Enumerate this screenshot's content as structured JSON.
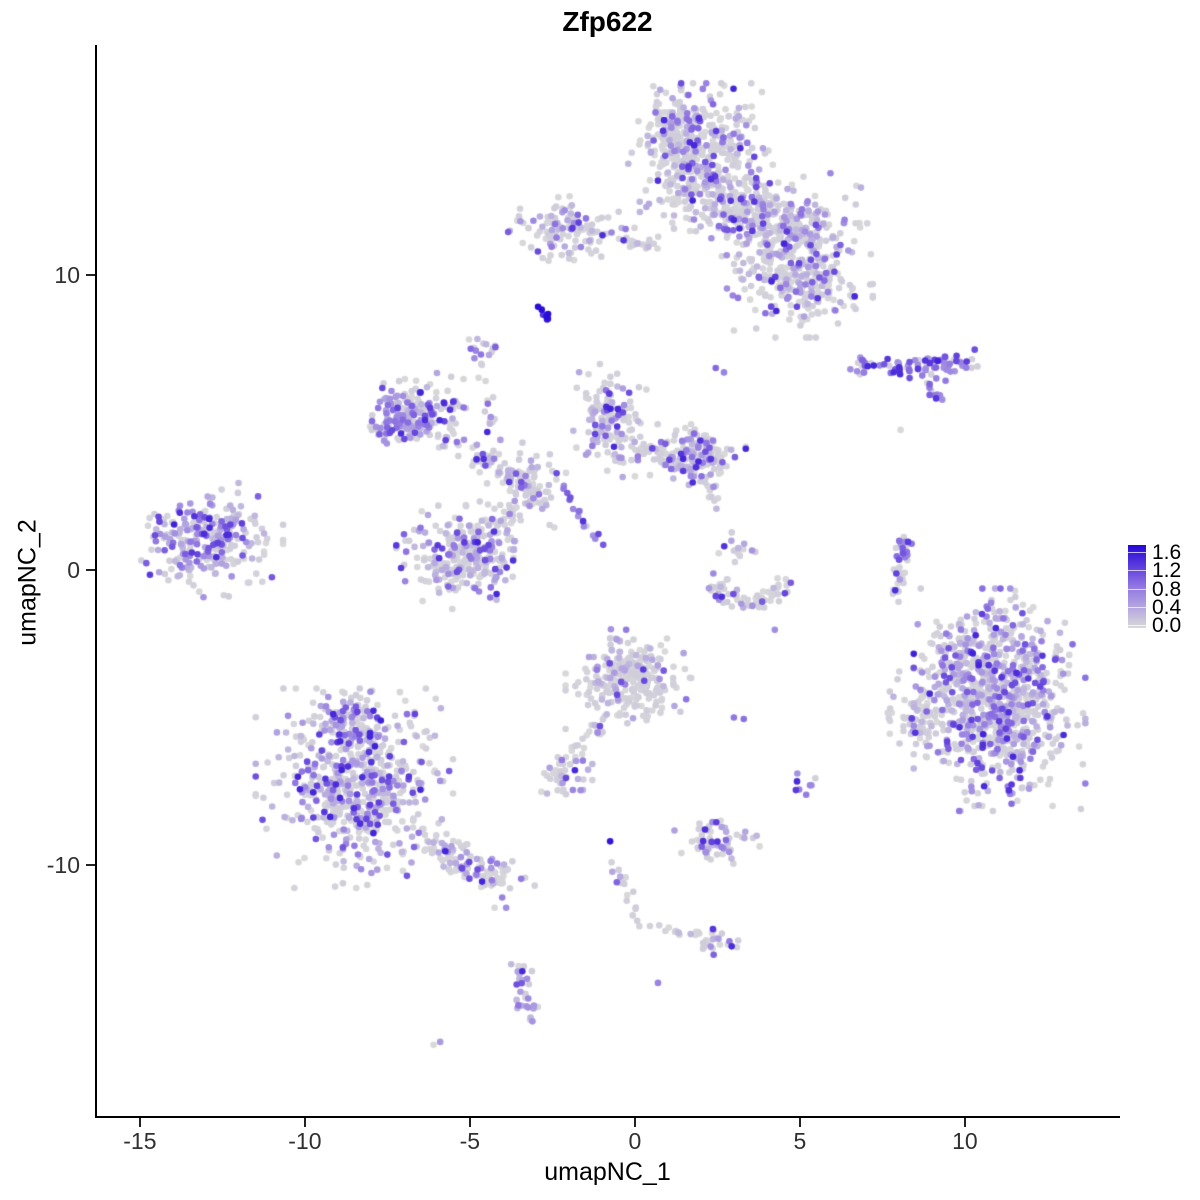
{
  "title": "Zfp622",
  "chart_data": {
    "type": "scatter",
    "title": "Zfp622",
    "xlabel": "umapNC_1",
    "ylabel": "umapNC_2",
    "xlim": [
      -16.36,
      14.7
    ],
    "ylim": [
      -18.58,
      17.8
    ],
    "grid": false,
    "x_ticks": [
      -15,
      -10,
      -5,
      0,
      5,
      10
    ],
    "y_ticks": [
      10,
      0,
      -10
    ],
    "point_radius_px": 3.3,
    "palette_stops": [
      [
        0.0,
        "#D9D9D9"
      ],
      [
        0.4,
        "#B4A6E0"
      ],
      [
        0.8,
        "#9177E2"
      ],
      [
        1.2,
        "#5C3BDC"
      ],
      [
        1.6,
        "#2408D8"
      ]
    ],
    "legend": {
      "position": "right",
      "min": 0.0,
      "max": 1.6,
      "tick_labels": [
        "1.6",
        "1.2",
        "0.8",
        "0.4",
        "0.0"
      ]
    },
    "clusters": [
      {
        "name": "top-main-blob",
        "kind": "blob",
        "cx": 1.97,
        "cy": 13.9,
        "sx": 0.85,
        "sy": 1.0,
        "n": 430,
        "frac": 0.33,
        "bias": "low"
      },
      {
        "name": "top-main-peak",
        "kind": "blob",
        "cx": 1.1,
        "cy": 15.1,
        "sx": 0.45,
        "sy": 0.55,
        "n": 90,
        "frac": 0.35,
        "bias": "low"
      },
      {
        "name": "top-bridge",
        "kind": "blob",
        "cx": 3.3,
        "cy": 12.2,
        "sx": 0.7,
        "sy": 0.6,
        "n": 120,
        "frac": 0.3,
        "bias": "low"
      },
      {
        "name": "top-right-ext",
        "kind": "blob",
        "cx": 4.7,
        "cy": 11.5,
        "sx": 0.9,
        "sy": 0.75,
        "n": 280,
        "frac": 0.35,
        "bias": "low"
      },
      {
        "name": "top-right-lobe",
        "kind": "blob",
        "cx": 5.0,
        "cy": 9.7,
        "sx": 0.85,
        "sy": 0.7,
        "n": 230,
        "frac": 0.3,
        "bias": "low"
      },
      {
        "name": "upper-left-cluster",
        "kind": "blob",
        "cx": -2.1,
        "cy": 11.5,
        "sx": 0.7,
        "sy": 0.45,
        "n": 120,
        "frac": 0.3,
        "bias": "low"
      },
      {
        "name": "upper-left-arm",
        "kind": "line",
        "x1": -0.5,
        "y1": 11.15,
        "x2": 0.6,
        "y2": 11.0,
        "w": 0.12,
        "n": 18,
        "frac": 0.1,
        "bias": "low"
      },
      {
        "name": "blue-streak",
        "kind": "line",
        "x1": -2.95,
        "y1": 8.95,
        "x2": -2.6,
        "y2": 8.45,
        "w": 0.07,
        "n": 9,
        "frac": 1.0,
        "bias": "high"
      },
      {
        "name": "small-cluster-f",
        "kind": "blob",
        "cx": -4.5,
        "cy": 7.45,
        "sx": 0.3,
        "sy": 0.25,
        "n": 14,
        "frac": 0.4,
        "bias": "low"
      },
      {
        "name": "mid-left-wing",
        "kind": "blob",
        "cx": -6.65,
        "cy": 5.25,
        "sx": 0.7,
        "sy": 0.55,
        "n": 170,
        "frac": 0.45,
        "bias": "low"
      },
      {
        "name": "wing-left-edge",
        "kind": "blob",
        "cx": -7.3,
        "cy": 5.0,
        "sx": 0.35,
        "sy": 0.45,
        "n": 40,
        "frac": 0.7,
        "bias": "mid"
      },
      {
        "name": "x-arm",
        "kind": "line",
        "x1": -5.4,
        "y1": 4.4,
        "x2": -2.9,
        "y2": 2.4,
        "w": 0.25,
        "n": 85,
        "frac": 0.35,
        "bias": "low"
      },
      {
        "name": "diag-purple-streak",
        "kind": "line",
        "x1": -2.3,
        "y1": 3.05,
        "x2": -1.05,
        "y2": 0.85,
        "w": 0.08,
        "n": 16,
        "frac": 0.9,
        "bias": "mid"
      },
      {
        "name": "center-left-round-blob",
        "kind": "blob",
        "cx": -5.15,
        "cy": 0.5,
        "sx": 0.8,
        "sy": 0.7,
        "n": 270,
        "frac": 0.4,
        "bias": "low"
      },
      {
        "name": "junction-sparse",
        "kind": "blob",
        "cx": -3.2,
        "cy": 3.0,
        "sx": 0.5,
        "sy": 0.6,
        "n": 55,
        "frac": 0.3,
        "bias": "low"
      },
      {
        "name": "junction-connector",
        "kind": "line",
        "x1": -3.6,
        "y1": 2.2,
        "x2": -4.6,
        "y2": 1.2,
        "w": 0.2,
        "n": 30,
        "frac": 0.3,
        "bias": "low"
      },
      {
        "name": "chain-up",
        "kind": "line",
        "x1": -4.4,
        "y1": 4.4,
        "x2": -4.55,
        "y2": 7.0,
        "w": 0.12,
        "n": 14,
        "frac": 0.15,
        "bias": "low"
      },
      {
        "name": "center-top-cluster",
        "kind": "blob",
        "cx": -0.75,
        "cy": 5.1,
        "sx": 0.45,
        "sy": 0.75,
        "n": 140,
        "frac": 0.4,
        "bias": "low"
      },
      {
        "name": "center-bridge",
        "kind": "line",
        "x1": -0.3,
        "y1": 4.2,
        "x2": 1.0,
        "y2": 3.9,
        "w": 0.15,
        "n": 25,
        "frac": 0.3,
        "bias": "low"
      },
      {
        "name": "center-right-cluster",
        "kind": "blob",
        "cx": 1.8,
        "cy": 3.9,
        "sx": 0.6,
        "sy": 0.4,
        "n": 160,
        "frac": 0.42,
        "bias": "low"
      },
      {
        "name": "center-right-tail",
        "kind": "line",
        "x1": 2.1,
        "y1": 3.2,
        "x2": 2.4,
        "y2": 2.3,
        "w": 0.12,
        "n": 12,
        "frac": 0.1,
        "bias": "low"
      },
      {
        "name": "pair-dots-n",
        "kind": "dots",
        "pts": [
          [
            2.45,
            6.85,
            0.9
          ],
          [
            2.7,
            6.7,
            0.7
          ]
        ]
      },
      {
        "name": "right-band",
        "kind": "line",
        "x1": 6.7,
        "y1": 6.9,
        "x2": 10.3,
        "y2": 7.0,
        "w": 0.22,
        "n": 85,
        "frac": 0.7,
        "bias": "mid"
      },
      {
        "name": "right-band-diag",
        "kind": "line",
        "x1": 8.8,
        "y1": 6.3,
        "x2": 9.4,
        "y2": 5.7,
        "w": 0.08,
        "n": 10,
        "frac": 0.8,
        "bias": "mid"
      },
      {
        "name": "right-band-dot",
        "kind": "dots",
        "pts": [
          [
            8.05,
            4.75,
            0.0
          ]
        ]
      },
      {
        "name": "right-crescent-top",
        "kind": "line",
        "x1": 8.2,
        "y1": 1.15,
        "x2": 8.05,
        "y2": 0.1,
        "w": 0.1,
        "n": 22,
        "frac": 0.75,
        "bias": "mid"
      },
      {
        "name": "right-crescent-bottom",
        "kind": "line",
        "x1": 8.05,
        "y1": 0.1,
        "x2": 7.95,
        "y2": -1.05,
        "w": 0.1,
        "n": 22,
        "frac": 0.15,
        "bias": "low"
      },
      {
        "name": "big-right-blob",
        "kind": "blob",
        "cx": 11.05,
        "cy": -4.4,
        "sx": 1.0,
        "sy": 1.45,
        "n": 850,
        "frac": 0.45,
        "bias": "low"
      },
      {
        "name": "big-right-left-arm",
        "kind": "blob",
        "cx": 8.6,
        "cy": -5.0,
        "sx": 0.45,
        "sy": 0.6,
        "n": 70,
        "frac": 0.25,
        "bias": "low"
      },
      {
        "name": "big-right-top-sparse",
        "kind": "blob",
        "cx": 9.6,
        "cy": -2.9,
        "sx": 0.5,
        "sy": 0.5,
        "n": 60,
        "frac": 0.3,
        "bias": "low"
      },
      {
        "name": "small-purple-blob-r",
        "kind": "blob",
        "cx": 5.2,
        "cy": -7.3,
        "sx": 0.18,
        "sy": 0.2,
        "n": 8,
        "frac": 0.85,
        "bias": "mid"
      },
      {
        "name": "far-left-cluster",
        "kind": "blob",
        "cx": -13.0,
        "cy": 1.0,
        "sx": 0.9,
        "sy": 0.75,
        "n": 270,
        "frac": 0.55,
        "bias": "low"
      },
      {
        "name": "bottom-left-cluster",
        "kind": "blob",
        "cx": -8.5,
        "cy": -7.4,
        "sx": 1.15,
        "sy": 1.3,
        "n": 600,
        "frac": 0.4,
        "bias": "low"
      },
      {
        "name": "bottom-left-dense-top",
        "kind": "blob",
        "cx": -8.7,
        "cy": -5.3,
        "sx": 0.55,
        "sy": 0.45,
        "n": 90,
        "frac": 0.45,
        "bias": "low"
      },
      {
        "name": "bottom-left-tail",
        "kind": "line",
        "x1": -6.3,
        "y1": -9.1,
        "x2": -3.8,
        "y2": -10.7,
        "w": 0.3,
        "n": 110,
        "frac": 0.35,
        "bias": "low"
      },
      {
        "name": "tail-end-dots",
        "kind": "dots",
        "pts": [
          [
            -4.25,
            -11.45,
            0.0
          ],
          [
            -3.9,
            -11.45,
            0.6
          ]
        ]
      },
      {
        "name": "bottom-streak",
        "kind": "line",
        "x1": -3.45,
        "y1": -13.4,
        "x2": -3.2,
        "y2": -15.3,
        "w": 0.15,
        "n": 32,
        "frac": 0.6,
        "bias": "low"
      },
      {
        "name": "bottom-pair-dots",
        "kind": "dots",
        "pts": [
          [
            -6.1,
            -16.1,
            0.0
          ],
          [
            -5.9,
            -16.0,
            0.5
          ]
        ]
      },
      {
        "name": "center-bottom-cluster",
        "kind": "blob",
        "cx": -0.15,
        "cy": -3.7,
        "sx": 0.75,
        "sy": 0.65,
        "n": 260,
        "frac": 0.18,
        "bias": "low"
      },
      {
        "name": "center-bottom-funnel",
        "kind": "line",
        "x1": -0.9,
        "y1": -4.9,
        "x2": -2.1,
        "y2": -6.7,
        "w": 0.15,
        "n": 28,
        "frac": 0.25,
        "bias": "low"
      },
      {
        "name": "funnel-end-blob",
        "kind": "blob",
        "cx": -2.2,
        "cy": -7.1,
        "sx": 0.35,
        "sy": 0.3,
        "n": 38,
        "frac": 0.35,
        "bias": "low"
      },
      {
        "name": "lone-blue-dot",
        "kind": "dots",
        "pts": [
          [
            -0.75,
            -9.2,
            1.5
          ]
        ]
      },
      {
        "name": "lower-chain",
        "kind": "line",
        "x1": -0.65,
        "y1": -9.8,
        "x2": -0.1,
        "y2": -11.7,
        "w": 0.12,
        "n": 16,
        "frac": 0.15,
        "bias": "low"
      },
      {
        "name": "lower-arc",
        "kind": "line",
        "x1": 0.0,
        "y1": -11.8,
        "x2": 1.6,
        "y2": -12.4,
        "w": 0.1,
        "n": 12,
        "frac": 0.1,
        "bias": "low"
      },
      {
        "name": "lower-arc-blob",
        "kind": "blob",
        "cx": 2.35,
        "cy": -12.6,
        "sx": 0.3,
        "sy": 0.25,
        "n": 26,
        "frac": 0.45,
        "bias": "low"
      },
      {
        "name": "purple-pair",
        "kind": "dots",
        "pts": [
          [
            3.0,
            -5.0,
            0.8
          ],
          [
            3.3,
            -5.05,
            0.85
          ]
        ]
      },
      {
        "name": "lone-purple-dot",
        "kind": "dots",
        "pts": [
          [
            0.7,
            -14.0,
            0.7
          ]
        ]
      },
      {
        "name": "small-bottom-cluster",
        "kind": "blob",
        "cx": 2.5,
        "cy": -9.3,
        "sx": 0.5,
        "sy": 0.35,
        "n": 60,
        "frac": 0.45,
        "bias": "low"
      },
      {
        "name": "small-bottom-dots",
        "kind": "dots",
        "pts": [
          [
            2.35,
            -8.55,
            0.6
          ],
          [
            2.6,
            -8.5,
            0.0
          ]
        ]
      },
      {
        "name": "smile-arc-left",
        "kind": "line",
        "x1": 2.15,
        "y1": -0.35,
        "x2": 3.45,
        "y2": -1.25,
        "w": 0.18,
        "n": 32,
        "frac": 0.3,
        "bias": "low"
      },
      {
        "name": "smile-arc-right",
        "kind": "line",
        "x1": 3.45,
        "y1": -1.25,
        "x2": 4.65,
        "y2": -0.55,
        "w": 0.18,
        "n": 28,
        "frac": 0.3,
        "bias": "low"
      },
      {
        "name": "smile-top-group",
        "kind": "blob",
        "cx": 3.25,
        "cy": 0.8,
        "sx": 0.3,
        "sy": 0.25,
        "n": 14,
        "frac": 0.4,
        "bias": "low"
      },
      {
        "name": "smile-below-dot",
        "kind": "dots",
        "pts": [
          [
            4.24,
            -2.03,
            0.6
          ]
        ]
      }
    ]
  }
}
